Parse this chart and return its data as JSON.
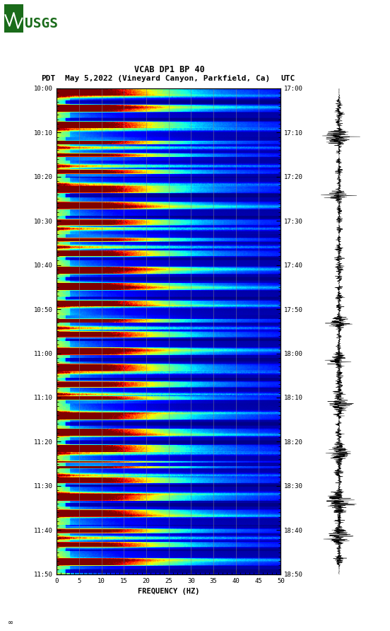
{
  "title_line1": "VCAB DP1 BP 40",
  "title_line2_left": "PDT",
  "title_line2_mid": "May 5,2022 (Vineyard Canyon, Parkfield, Ca)",
  "title_line2_right": "UTC",
  "xlabel": "FREQUENCY (HZ)",
  "freq_min": 0,
  "freq_max": 50,
  "pdt_ticks": [
    "10:00",
    "10:10",
    "10:20",
    "10:30",
    "10:40",
    "10:50",
    "11:00",
    "11:10",
    "11:20",
    "11:30",
    "11:40",
    "11:50"
  ],
  "utc_ticks": [
    "17:00",
    "17:10",
    "17:20",
    "17:30",
    "17:40",
    "17:50",
    "18:00",
    "18:10",
    "18:20",
    "18:30",
    "18:40",
    "18:50"
  ],
  "freq_ticks": [
    0,
    5,
    10,
    15,
    20,
    25,
    30,
    35,
    40,
    45,
    50
  ],
  "grid_freqs": [
    5,
    10,
    15,
    20,
    25,
    30,
    35,
    40,
    45
  ],
  "background_color": "#ffffff",
  "fig_width": 5.52,
  "fig_height": 8.92
}
